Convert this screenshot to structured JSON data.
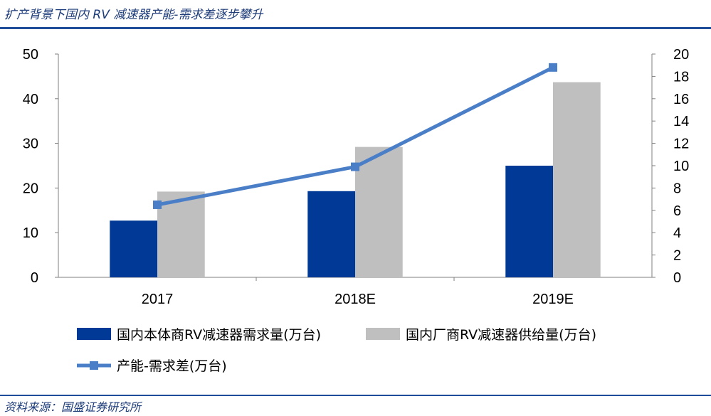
{
  "header": {
    "title": "扩产背景下国内 RV 减速器产能-需求差逐步攀升"
  },
  "footer": {
    "source": "资料来源：国盛证券研究所"
  },
  "colors": {
    "bar_domestic_demand": "#003a96",
    "bar_domestic_supply": "#bfbfbf",
    "line_gap": "#4a7fc8",
    "rule": "#1f4d9a"
  },
  "chart_data": {
    "type": "bar",
    "categories": [
      "2017",
      "2018E",
      "2019E"
    ],
    "series": [
      {
        "name": "国内本体商RV减速器需求量(万台)",
        "type": "bar",
        "axis": "left",
        "values": [
          12.7,
          19.3,
          25.0
        ]
      },
      {
        "name": "国内厂商RV减速器供给量(万台)",
        "type": "bar",
        "axis": "left",
        "values": [
          19.2,
          29.2,
          43.7
        ]
      },
      {
        "name": "产能-需求差(万台)",
        "type": "line",
        "axis": "right",
        "values": [
          6.5,
          9.9,
          18.8
        ]
      }
    ],
    "left_axis": {
      "ylim": [
        0,
        50
      ],
      "ticks": [
        "0",
        "10",
        "20",
        "30",
        "40",
        "50"
      ]
    },
    "right_axis": {
      "ylim": [
        0,
        20
      ],
      "ticks": [
        "0",
        "2",
        "4",
        "6",
        "8",
        "10",
        "12",
        "14",
        "16",
        "18",
        "20"
      ]
    },
    "grid": false,
    "legend_position": "bottom"
  }
}
